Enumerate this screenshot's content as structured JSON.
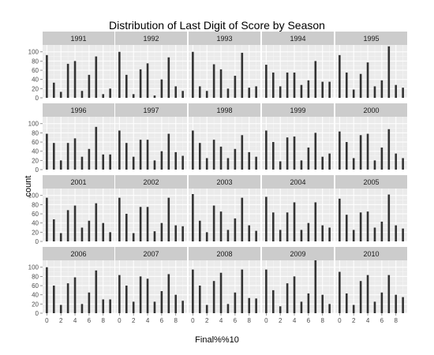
{
  "chart_data": {
    "type": "bar",
    "title": "Distribution of Last Digit of Score by Season",
    "xlabel": "Final%%10",
    "ylabel": "count",
    "categories": [
      0,
      1,
      2,
      3,
      4,
      5,
      6,
      7,
      8,
      9
    ],
    "x_tick_labels": [
      "0",
      "2",
      "4",
      "6",
      "8"
    ],
    "y_tick_labels": [
      "0",
      "20",
      "40",
      "60",
      "80",
      "100"
    ],
    "ylim": [
      0,
      115
    ],
    "grid": true,
    "facet_layout": "4 rows x 5 columns",
    "colors": {
      "bar": "#333333",
      "panel": "#ebebeb",
      "grid": "#ffffff",
      "strip": "#cccccc"
    },
    "facets": [
      {
        "label": "1991",
        "values": [
          93,
          33,
          13,
          74,
          80,
          15,
          50,
          90,
          8,
          20
        ]
      },
      {
        "label": "1992",
        "values": [
          100,
          50,
          8,
          62,
          75,
          5,
          40,
          88,
          25,
          15
        ]
      },
      {
        "label": "1993",
        "values": [
          100,
          25,
          15,
          73,
          62,
          20,
          48,
          98,
          22,
          25
        ]
      },
      {
        "label": "1994",
        "values": [
          72,
          55,
          25,
          55,
          55,
          28,
          38,
          80,
          35,
          35
        ]
      },
      {
        "label": "1995",
        "values": [
          93,
          55,
          18,
          52,
          77,
          25,
          38,
          112,
          28,
          22
        ]
      },
      {
        "label": "1996",
        "values": [
          78,
          58,
          20,
          58,
          68,
          28,
          45,
          93,
          33,
          33
        ]
      },
      {
        "label": "1997",
        "values": [
          85,
          58,
          28,
          65,
          65,
          20,
          40,
          78,
          38,
          30
        ]
      },
      {
        "label": "1998",
        "values": [
          85,
          58,
          25,
          65,
          50,
          25,
          45,
          75,
          38,
          28
        ]
      },
      {
        "label": "1999",
        "values": [
          85,
          60,
          18,
          70,
          72,
          20,
          48,
          80,
          28,
          35
        ]
      },
      {
        "label": "2000",
        "values": [
          83,
          60,
          25,
          75,
          78,
          20,
          48,
          88,
          35,
          25
        ]
      },
      {
        "label": "2001",
        "values": [
          95,
          48,
          18,
          68,
          78,
          30,
          45,
          83,
          40,
          20
        ]
      },
      {
        "label": "2002",
        "values": [
          95,
          60,
          18,
          75,
          75,
          22,
          40,
          95,
          35,
          33
        ]
      },
      {
        "label": "2003",
        "values": [
          103,
          45,
          20,
          78,
          65,
          25,
          50,
          95,
          35,
          23
        ]
      },
      {
        "label": "2004",
        "values": [
          97,
          63,
          25,
          63,
          85,
          25,
          40,
          85,
          35,
          30
        ]
      },
      {
        "label": "2005",
        "values": [
          93,
          58,
          25,
          63,
          65,
          30,
          43,
          102,
          35,
          28
        ]
      },
      {
        "label": "2006",
        "values": [
          100,
          60,
          18,
          65,
          78,
          20,
          45,
          93,
          30,
          30
        ]
      },
      {
        "label": "2007",
        "values": [
          83,
          60,
          25,
          80,
          75,
          25,
          48,
          85,
          40,
          27
        ]
      },
      {
        "label": "2008",
        "values": [
          95,
          60,
          18,
          70,
          88,
          20,
          45,
          95,
          33,
          32
        ]
      },
      {
        "label": "2009",
        "values": [
          95,
          50,
          15,
          65,
          80,
          25,
          43,
          115,
          40,
          20
        ]
      },
      {
        "label": "2010",
        "values": [
          90,
          43,
          18,
          70,
          83,
          25,
          45,
          83,
          40,
          35
        ]
      }
    ]
  }
}
